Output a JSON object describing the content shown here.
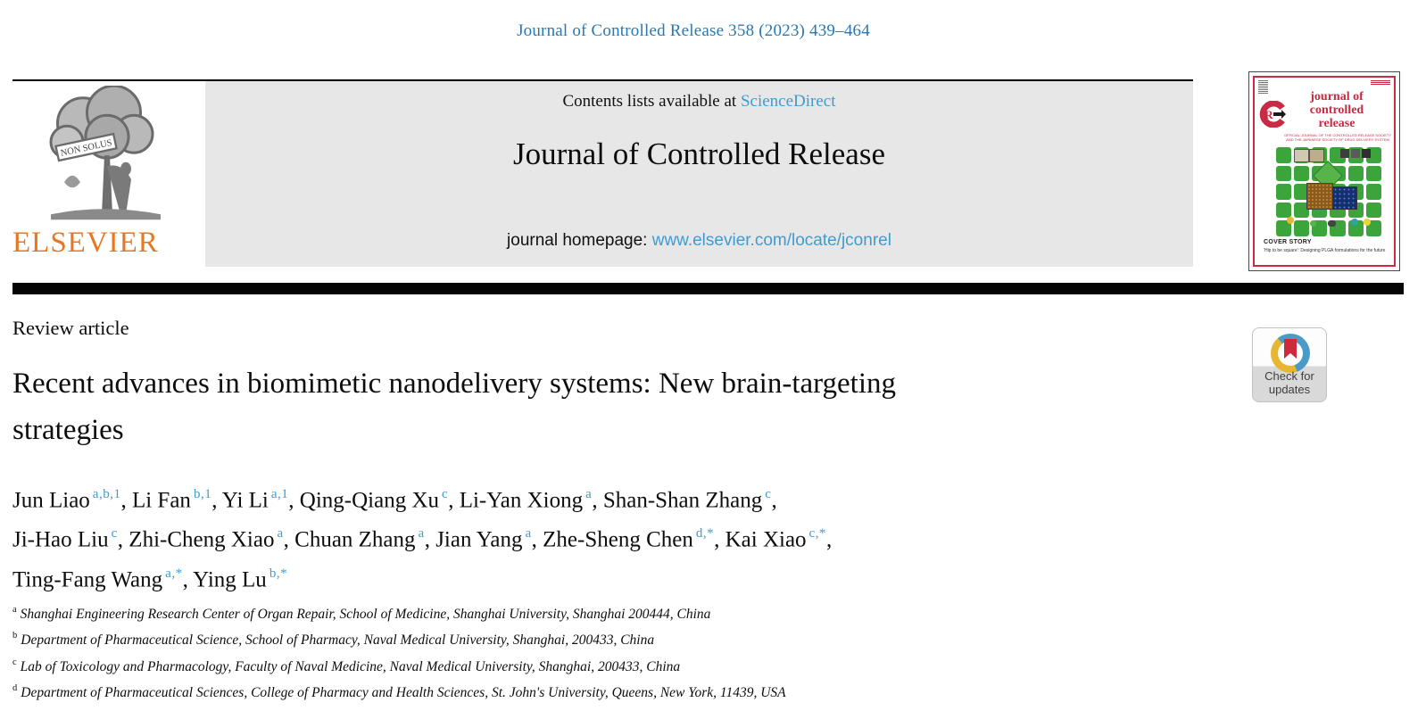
{
  "colors": {
    "citation_teal": "#2878B4",
    "link_blue": "#3E9CD0",
    "banner_gray": "#E7E7E7",
    "elsevier_orange": "#E87722",
    "cover_red": "#C92A44",
    "cover_green": "#3BA43B",
    "crossmark_blue": "#4A9CC7",
    "crossmark_yellow": "#E8B633",
    "crossmark_red": "#CC2B39"
  },
  "masthead": {
    "citation": "Journal of Controlled Release 358 (2023) 439–464"
  },
  "banner": {
    "contents_prefix": "Contents lists available at ",
    "sciencedirect_link": "ScienceDirect",
    "journal_title": "Journal of Controlled Release",
    "homepage_prefix": "journal homepage: ",
    "homepage_url": "www.elsevier.com/locate/jconrel"
  },
  "publisher": {
    "name": "ELSEVIER",
    "motto": "NON SOLUS"
  },
  "cover": {
    "title_lines": [
      "journal of",
      "controlled",
      "release"
    ],
    "subtitle_line1": "OFFICIAL JOURNAL OF THE CONTROLLED RELEASE SOCIETY",
    "subtitle_line2": "AND THE JAPANESE SOCIETY OF DRUG DELIVERY SYSTEM",
    "cover_story_label": "COVER STORY",
    "cover_story_text": "'Hip to be square': Designing PLGA formulations for the future"
  },
  "article": {
    "type_label": "Review article",
    "title": "Recent advances in biomimetic nanodelivery systems: New brain-targeting strategies",
    "authors_lines": [
      [
        {
          "name": "Jun Liao",
          "sup": "a,b,1"
        },
        {
          "name": "Li Fan",
          "sup": "b,1"
        },
        {
          "name": "Yi Li",
          "sup": "a,1"
        },
        {
          "name": "Qing-Qiang Xu",
          "sup": "c"
        },
        {
          "name": "Li-Yan Xiong",
          "sup": "a"
        },
        {
          "name": "Shan-Shan Zhang",
          "sup": "c"
        }
      ],
      [
        {
          "name": "Ji-Hao Liu",
          "sup": "c"
        },
        {
          "name": "Zhi-Cheng Xiao",
          "sup": "a"
        },
        {
          "name": "Chuan Zhang",
          "sup": "a"
        },
        {
          "name": "Jian Yang",
          "sup": "a"
        },
        {
          "name": "Zhe-Sheng Chen",
          "sup": "d,*"
        },
        {
          "name": "Kai Xiao",
          "sup": "c,*"
        }
      ],
      [
        {
          "name": "Ting-Fang Wang",
          "sup": "a,*"
        },
        {
          "name": "Ying Lu",
          "sup": "b,*"
        }
      ]
    ],
    "affiliations": [
      {
        "sup": "a",
        "text": "Shanghai Engineering Research Center of Organ Repair, School of Medicine, Shanghai University, Shanghai 200444, China"
      },
      {
        "sup": "b",
        "text": "Department of Pharmaceutical Science, School of Pharmacy, Naval Medical University, Shanghai, 200433, China"
      },
      {
        "sup": "c",
        "text": "Lab of Toxicology and Pharmacology, Faculty of Naval Medicine, Naval Medical University, Shanghai, 200433, China"
      },
      {
        "sup": "d",
        "text": "Department of Pharmaceutical Sciences, College of Pharmacy and Health Sciences, St. John's University, Queens, New York, 11439, USA"
      }
    ]
  },
  "badge": {
    "line1": "Check for",
    "line2": "updates"
  }
}
